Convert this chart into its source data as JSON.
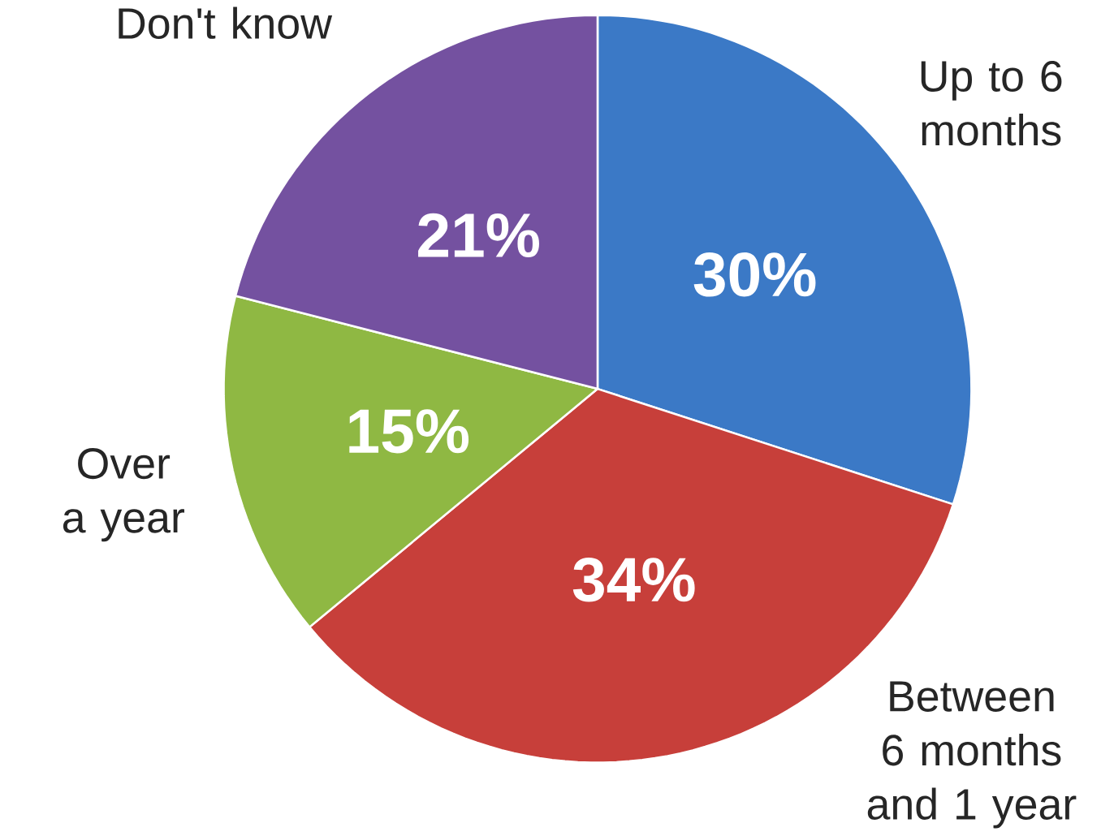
{
  "chart_data": {
    "type": "pie",
    "categories": [
      "Up to 6 months",
      "Between 6 months and 1 year",
      "Over a year",
      "Don't know"
    ],
    "values": [
      30,
      34,
      15,
      21
    ],
    "colors": [
      "#3b79c6",
      "#c73f3a",
      "#8fb843",
      "#7451a0"
    ],
    "data_labels": true,
    "value_labels": [
      "30%",
      "34%",
      "15%",
      "21%"
    ]
  }
}
